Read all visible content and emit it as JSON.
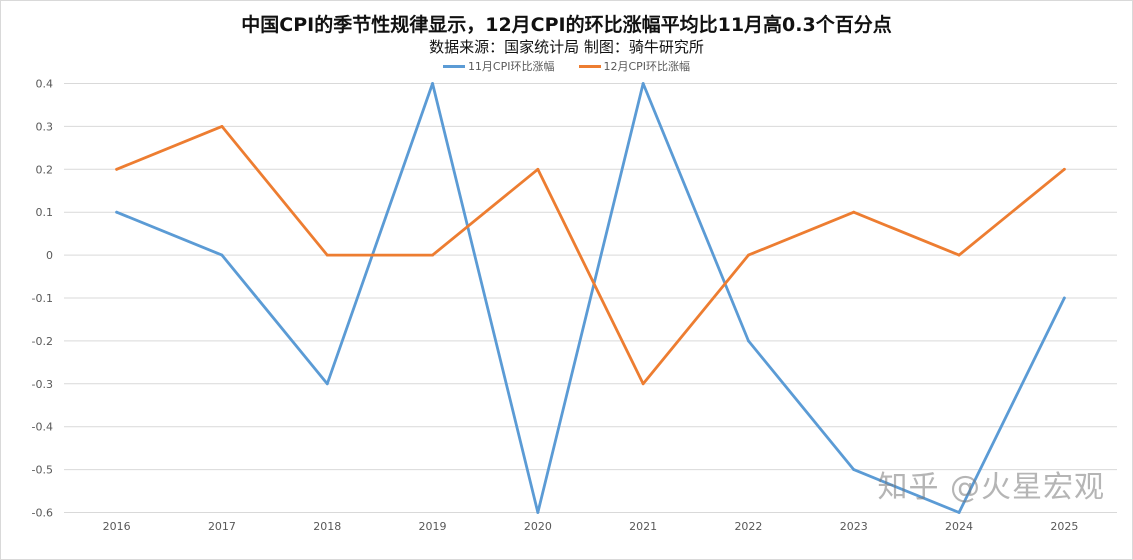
{
  "chart_data": {
    "type": "line",
    "title": "中国CPI的季节性规律显示，12月CPI的环比涨幅平均比11月高0.3个百分点",
    "subtitle": "数据来源：国家统计局  制图：骑牛研究所",
    "categories": [
      "2016",
      "2017",
      "2018",
      "2019",
      "2020",
      "2021",
      "2022",
      "2023",
      "2024",
      "2025"
    ],
    "series": [
      {
        "name": "11月CPI环比涨幅",
        "color": "#5b9bd5",
        "values": [
          0.1,
          0,
          -0.3,
          0.4,
          -0.6,
          0.4,
          -0.2,
          -0.5,
          -0.6,
          -0.1
        ]
      },
      {
        "name": "12月CPI环比涨幅",
        "color": "#ed7d31",
        "values": [
          0.2,
          0.3,
          0,
          0,
          0.2,
          -0.3,
          0,
          0.1,
          0,
          0.2
        ]
      }
    ],
    "yticks": [
      "0.4",
      "0.3",
      "0.2",
      "0.1",
      "0",
      "-0.1",
      "-0.2",
      "-0.3",
      "-0.4",
      "-0.5",
      "-0.6"
    ],
    "ylim": [
      -0.6,
      0.4
    ],
    "xlabel": "",
    "ylabel": "",
    "grid": true,
    "legend": "top"
  },
  "watermark": "知乎 @火星宏观"
}
